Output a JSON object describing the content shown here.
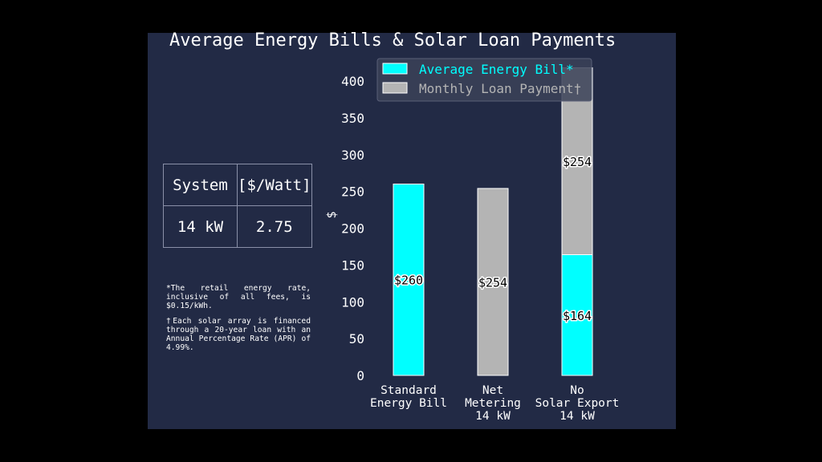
{
  "chart_data": {
    "type": "bar",
    "stacked": true,
    "title": "Average Energy Bills & Solar Loan Payments",
    "xlabel": "",
    "ylabel": "$",
    "ylim": [
      0,
      420
    ],
    "yticks": [
      0,
      50,
      100,
      150,
      200,
      250,
      300,
      350,
      400
    ],
    "grid": false,
    "legend_position": "top",
    "categories": [
      [
        "Standard",
        "Energy Bill"
      ],
      [
        "Net",
        "Metering",
        "14 kW"
      ],
      [
        "No",
        "Solar Export",
        "14 kW"
      ]
    ],
    "series": [
      {
        "name": "Average Energy Bill*",
        "color": "#00ffff",
        "values": [
          260,
          0,
          164
        ]
      },
      {
        "name": "Monthly Loan Payment†",
        "color": "#b4b4b4",
        "values": [
          0,
          254,
          254
        ]
      }
    ],
    "data_labels": [
      [
        "$260",
        "",
        "$164"
      ],
      [
        "",
        "$254",
        "$254"
      ]
    ]
  },
  "table": {
    "headers": [
      "System",
      "[$/Watt]"
    ],
    "rows": [
      [
        "14 kW",
        "2.75"
      ]
    ]
  },
  "notes": {
    "rate_note": "*The retail energy rate, inclusive of all fees, is $0.15/kWh.",
    "loan_note": "†Each solar array is financed through a 20-year loan with an Annual Percentage Rate (APR) of 4.99%."
  }
}
